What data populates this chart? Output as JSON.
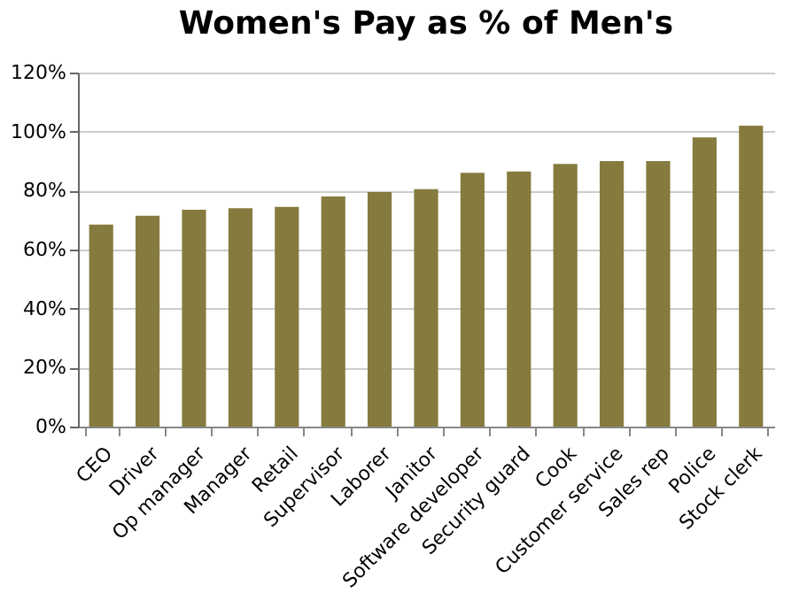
{
  "chart_data": {
    "type": "bar",
    "title": "Women's Pay as % of Men's",
    "categories": [
      "CEO",
      "Driver",
      "Op manager",
      "Manager",
      "Retail",
      "Supervisor",
      "Laborer",
      "Janitor",
      "Software developer",
      "Security guard",
      "Cook",
      "Customer service",
      "Sales rep",
      "Police",
      "Stock clerk"
    ],
    "values": [
      68.5,
      71.5,
      73.5,
      74,
      74.5,
      78,
      79.5,
      80.5,
      86,
      86.5,
      89,
      90,
      90,
      98,
      102
    ],
    "color": "#857b3e",
    "ylim": [
      0,
      120
    ],
    "yticks": [
      {
        "value": 0,
        "label": "0%"
      },
      {
        "value": 20,
        "label": "20%"
      },
      {
        "value": 40,
        "label": "40%"
      },
      {
        "value": 60,
        "label": "60%"
      },
      {
        "value": 80,
        "label": "80%"
      },
      {
        "value": 100,
        "label": "100%"
      },
      {
        "value": 120,
        "label": "120%"
      }
    ],
    "grid": "y"
  }
}
